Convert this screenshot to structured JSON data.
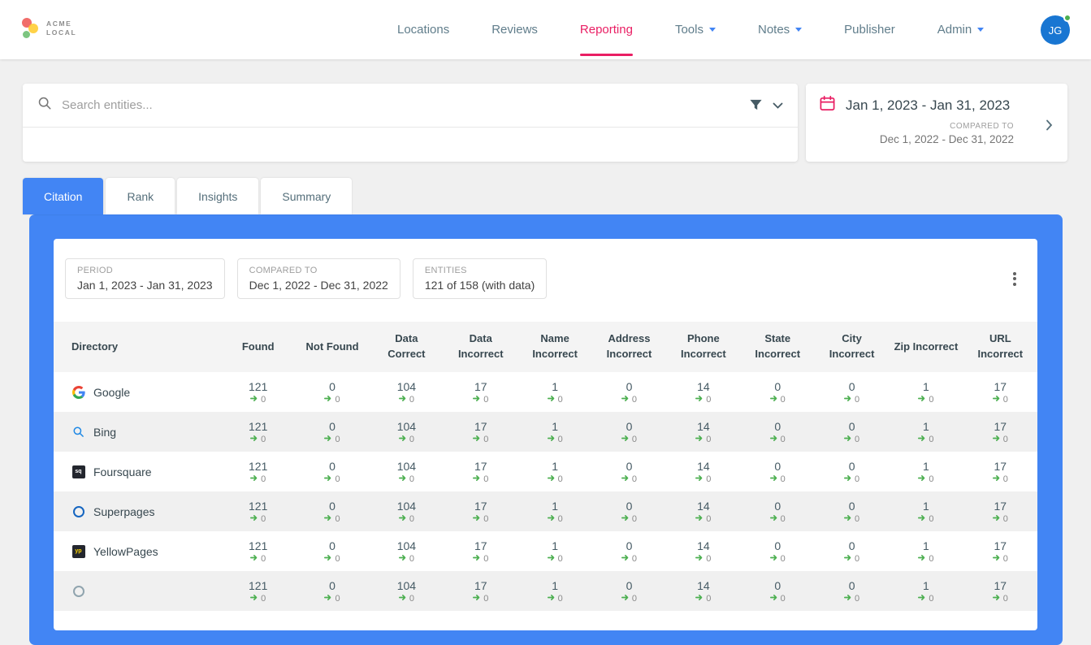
{
  "header": {
    "logo": {
      "line1": "ACME",
      "line2": "LOCAL"
    },
    "nav": [
      {
        "label": "Locations"
      },
      {
        "label": "Reviews"
      },
      {
        "label": "Reporting"
      },
      {
        "label": "Tools"
      },
      {
        "label": "Notes"
      },
      {
        "label": "Publisher"
      },
      {
        "label": "Admin"
      }
    ],
    "avatar": "JG"
  },
  "search": {
    "placeholder": "Search entities..."
  },
  "date_panel": {
    "period": "Jan 1, 2023 - Jan 31, 2023",
    "compared_label": "COMPARED TO",
    "compared_value": "Dec 1, 2022 - Dec 31, 2022"
  },
  "tabs": [
    {
      "label": "Citation"
    },
    {
      "label": "Rank"
    },
    {
      "label": "Insights"
    },
    {
      "label": "Summary"
    }
  ],
  "report_summary": {
    "period_label": "PERIOD",
    "period_value": "Jan 1, 2023 - Jan 31, 2023",
    "compared_label": "COMPARED TO",
    "compared_value": "Dec 1, 2022 - Dec 31, 2022",
    "entities_label": "ENTITIES",
    "entities_value": "121 of 158 (with data)"
  },
  "table": {
    "columns": [
      "Directory",
      "Found",
      "Not Found",
      "Data\nCorrect",
      "Data\nIncorrect",
      "Name\nIncorrect",
      "Address\nIncorrect",
      "Phone\nIncorrect",
      "State\nIncorrect",
      "City\nIncorrect",
      "Zip Incorrect",
      "URL\nIncorrect"
    ],
    "rows": [
      {
        "name": "Google",
        "icon": "google",
        "values": [
          121,
          0,
          104,
          17,
          1,
          0,
          14,
          0,
          0,
          1,
          17
        ],
        "deltas": [
          0,
          0,
          0,
          0,
          0,
          0,
          0,
          0,
          0,
          0,
          0
        ]
      },
      {
        "name": "Bing",
        "icon": "bing",
        "values": [
          121,
          0,
          104,
          17,
          1,
          0,
          14,
          0,
          0,
          1,
          17
        ],
        "deltas": [
          0,
          0,
          0,
          0,
          0,
          0,
          0,
          0,
          0,
          0,
          0
        ]
      },
      {
        "name": "Foursquare",
        "icon": "foursquare",
        "values": [
          121,
          0,
          104,
          17,
          1,
          0,
          14,
          0,
          0,
          1,
          17
        ],
        "deltas": [
          0,
          0,
          0,
          0,
          0,
          0,
          0,
          0,
          0,
          0,
          0
        ]
      },
      {
        "name": "Superpages",
        "icon": "superpages",
        "values": [
          121,
          0,
          104,
          17,
          1,
          0,
          14,
          0,
          0,
          1,
          17
        ],
        "deltas": [
          0,
          0,
          0,
          0,
          0,
          0,
          0,
          0,
          0,
          0,
          0
        ]
      },
      {
        "name": "YellowPages",
        "icon": "yellowpages",
        "values": [
          121,
          0,
          104,
          17,
          1,
          0,
          14,
          0,
          0,
          1,
          17
        ],
        "deltas": [
          0,
          0,
          0,
          0,
          0,
          0,
          0,
          0,
          0,
          0,
          0
        ]
      },
      {
        "name": "",
        "icon": "generic",
        "values": [
          121,
          0,
          104,
          17,
          1,
          0,
          14,
          0,
          0,
          1,
          17
        ],
        "deltas": [
          0,
          0,
          0,
          0,
          0,
          0,
          0,
          0,
          0,
          0,
          0
        ]
      }
    ]
  },
  "colors": {
    "accent_blue": "#4285F4",
    "accent_pink": "#E91E63",
    "positive_green": "#4CAF50"
  }
}
